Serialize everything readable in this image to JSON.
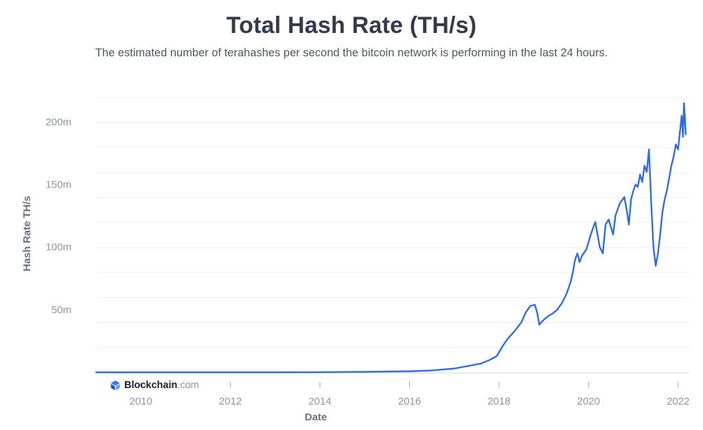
{
  "header": {
    "title": "Total Hash Rate (TH/s)",
    "subtitle": "The estimated number of terahashes per second the bitcoin network is performing in the last 24 hours."
  },
  "brand": {
    "name": "Blockchain",
    "tld": ".com",
    "icon": "blockchain-cube-icon",
    "color": "#2e7bf6"
  },
  "chart_data": {
    "type": "line",
    "xlabel": "Date",
    "ylabel": "Hash Rate TH/s",
    "xlim": [
      2009.0,
      2022.25
    ],
    "ylim": [
      0,
      220
    ],
    "x_ticks": [
      {
        "value": 2010,
        "label": "2010"
      },
      {
        "value": 2012,
        "label": "2012"
      },
      {
        "value": 2014,
        "label": "2014"
      },
      {
        "value": 2016,
        "label": "2016"
      },
      {
        "value": 2018,
        "label": "2018"
      },
      {
        "value": 2020,
        "label": "2020"
      },
      {
        "value": 2022,
        "label": "2022"
      }
    ],
    "y_ticks": [
      {
        "value": 50,
        "label": "50m"
      },
      {
        "value": 100,
        "label": "100m"
      },
      {
        "value": 150,
        "label": "150m"
      },
      {
        "value": 200,
        "label": "200m"
      }
    ],
    "grid": true,
    "line_color": "#2e6ce6",
    "series": [
      {
        "x": [
          2009.0,
          2013.0,
          2014.0,
          2015.0,
          2016.0,
          2016.5,
          2017.0,
          2017.3,
          2017.6,
          2017.8,
          2017.95,
          2018.1,
          2018.2,
          2018.35,
          2018.5,
          2018.6,
          2018.7,
          2018.8,
          2018.85,
          2018.9,
          2019.0,
          2019.1,
          2019.2,
          2019.3,
          2019.4,
          2019.5,
          2019.6,
          2019.65,
          2019.7,
          2019.75,
          2019.8,
          2019.85,
          2019.95,
          2020.05,
          2020.15,
          2020.25,
          2020.32,
          2020.38,
          2020.45,
          2020.55,
          2020.6,
          2020.7,
          2020.8,
          2020.85,
          2020.9,
          2020.95,
          2021.0,
          2021.05,
          2021.1,
          2021.15,
          2021.2,
          2021.25,
          2021.3,
          2021.35,
          2021.4,
          2021.45,
          2021.5,
          2021.55,
          2021.6,
          2021.65,
          2021.7,
          2021.75,
          2021.8,
          2021.85,
          2021.9,
          2021.95,
          2022.0,
          2022.05,
          2022.08,
          2022.11,
          2022.13,
          2022.15,
          2022.17
        ],
        "y": [
          0.0,
          0.01,
          0.1,
          0.4,
          0.8,
          1.5,
          3.0,
          5.0,
          7.0,
          10.0,
          13.0,
          22.0,
          27.0,
          33.0,
          40.0,
          48.0,
          53.0,
          54.0,
          48.0,
          38.0,
          42.0,
          45.0,
          47.0,
          50.0,
          55.0,
          62.0,
          72.0,
          80.0,
          90.0,
          95.0,
          88.0,
          93.0,
          98.0,
          110.0,
          120.0,
          100.0,
          95.0,
          118.0,
          122.0,
          110.0,
          125.0,
          135.0,
          140.0,
          130.0,
          118.0,
          138.0,
          145.0,
          150.0,
          148.0,
          158.0,
          152.0,
          165.0,
          160.0,
          178.0,
          135.0,
          100.0,
          85.0,
          95.0,
          110.0,
          128.0,
          138.0,
          145.0,
          155.0,
          165.0,
          172.0,
          182.0,
          178.0,
          195.0,
          205.0,
          188.0,
          215.0,
          205.0,
          190.0
        ]
      }
    ]
  }
}
